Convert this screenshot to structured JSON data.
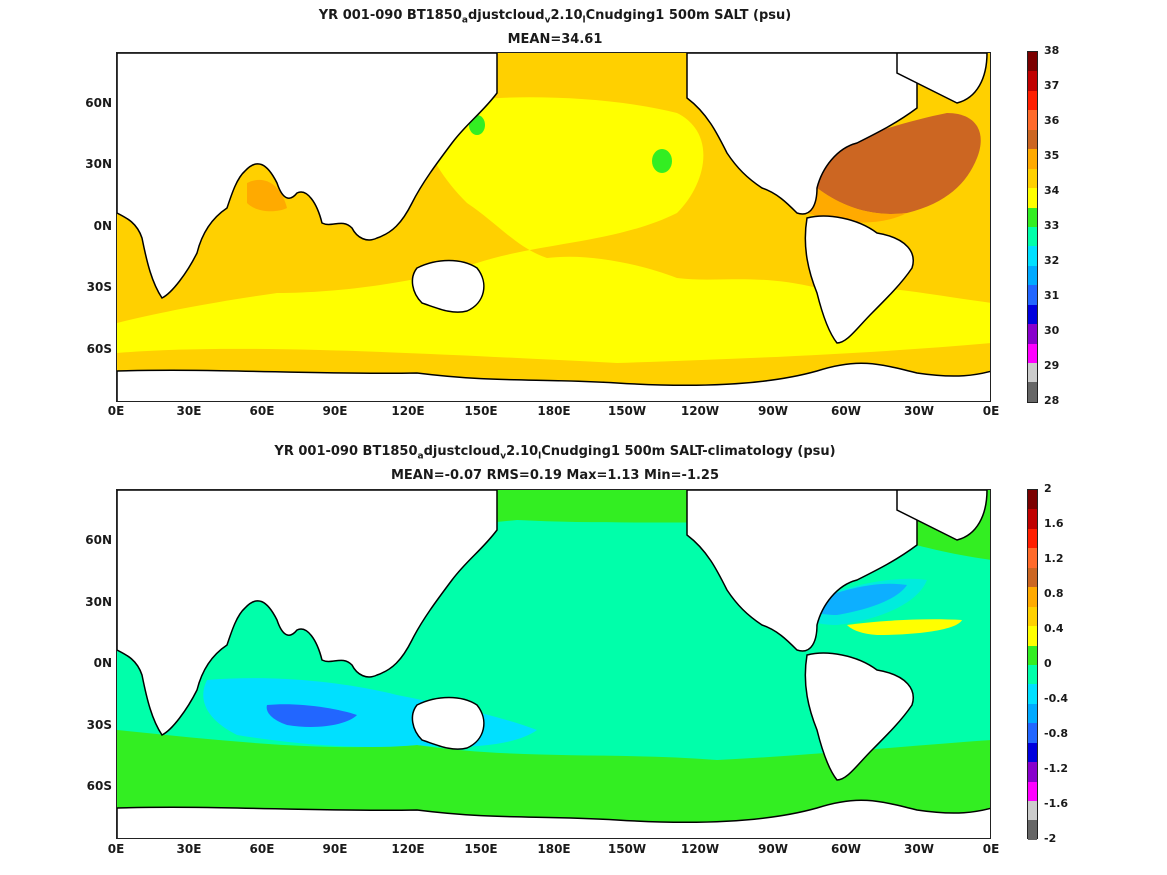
{
  "panel1": {
    "title_prefix": "YR 001-090 BT1850",
    "title_sub1": "a",
    "title_mid1": "djustcloud",
    "title_sub2": "v",
    "title_mid2": "2.10",
    "title_sub3": "l",
    "title_suffix": "Cnudging1 500m SALT (psu)",
    "stats": "MEAN=34.61",
    "colorbar_labels": [
      "38",
      "37",
      "36",
      "35",
      "34",
      "33",
      "32",
      "31",
      "30",
      "29",
      "28"
    ],
    "colorbar_colors": [
      "#7b0000",
      "#c00000",
      "#ff1e00",
      "#ff6a2a",
      "#cc6622",
      "#ffaa00",
      "#ffd000",
      "#ffff00",
      "#33ee22",
      "#00ffaa",
      "#00e0ff",
      "#00aaff",
      "#2266ff",
      "#0000dd",
      "#8800cc",
      "#ff00ff",
      "#cccccc",
      "#666666"
    ],
    "fill_color": "#ffd000"
  },
  "panel2": {
    "title_prefix": "YR 001-090 BT1850",
    "title_sub1": "a",
    "title_mid1": "djustcloud",
    "title_sub2": "v",
    "title_mid2": "2.10",
    "title_sub3": "l",
    "title_suffix": "Cnudging1 500m SALT-climatology (psu)",
    "stats": "MEAN=-0.07   RMS=0.19   Max=1.13   Min=-1.25",
    "colorbar_labels": [
      "2",
      "1.6",
      "1.2",
      "0.8",
      "0.4",
      "0",
      "-0.4",
      "-0.8",
      "-1.2",
      "-1.6",
      "-2"
    ],
    "colorbar_colors": [
      "#7b0000",
      "#c00000",
      "#ff1e00",
      "#ff6a2a",
      "#cc6622",
      "#ffaa00",
      "#ffd000",
      "#ffff00",
      "#33ee22",
      "#00ffaa",
      "#00e0ff",
      "#00aaff",
      "#2266ff",
      "#0000dd",
      "#8800cc",
      "#ff00ff",
      "#cccccc",
      "#666666"
    ],
    "fill_color": "#00ffaa"
  },
  "lat_labels": [
    "60N",
    "30N",
    "0N",
    "30S",
    "60S"
  ],
  "lon_labels": [
    "0E",
    "30E",
    "60E",
    "90E",
    "120E",
    "150E",
    "180E",
    "150W",
    "120W",
    "90W",
    "60W",
    "30W",
    "0E"
  ],
  "colors": {
    "land": "#ffffff",
    "coast": "#000000",
    "p1_yellow": "#ffff00",
    "p1_orange": "#ffd000",
    "p1_dark": "#cc6622",
    "p1_amber": "#ffaa00",
    "p1_red": "#7b0000",
    "p1_green": "#33ee22",
    "p2_base": "#00ffaa",
    "p2_light": "#33ee22",
    "p2_cyan": "#00e0ff",
    "p2_blue": "#2266ff",
    "p2_yellow": "#ffff00"
  }
}
